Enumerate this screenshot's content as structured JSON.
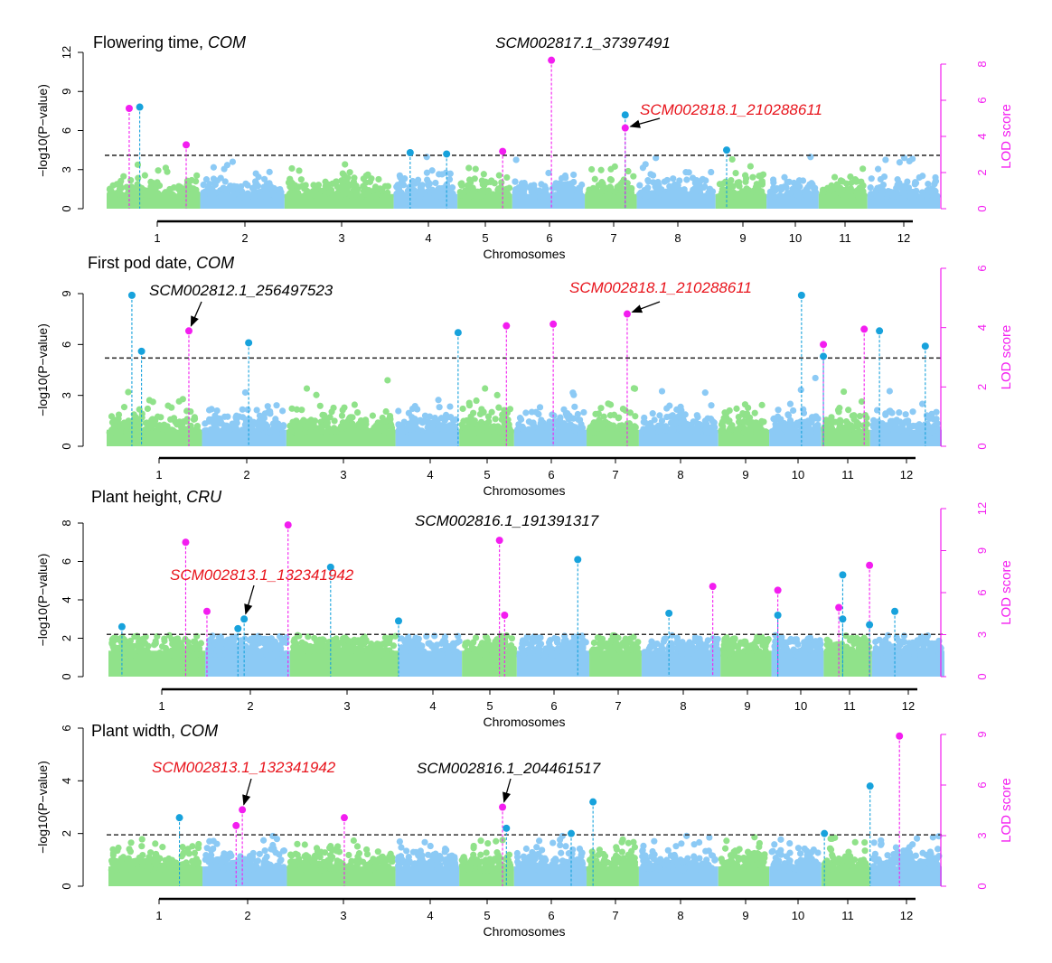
{
  "colors": {
    "green": "#90e28a",
    "blue": "#8ccaf5",
    "peak_blue": "#17a2dc",
    "magenta": "#f31df0",
    "threshold": "#333333",
    "red": "#e8141c"
  },
  "chart_data": [
    {
      "type": "scatter",
      "title": "Flowering time, ",
      "title_italic": "COM",
      "ylabel": "−log10(P−value)",
      "y2label": "LOD score",
      "xlabel": "Chromosomes",
      "ylim": [
        0,
        12
      ],
      "yticks": [
        0,
        3,
        6,
        9,
        12
      ],
      "y2lim": [
        0,
        8
      ],
      "y2ticks": [
        0,
        2,
        4,
        6,
        8
      ],
      "xticks": [
        "1",
        "2",
        "3",
        "4",
        "5",
        "6",
        "7",
        "8",
        "9",
        "10",
        "11",
        "12"
      ],
      "threshold": 4.1,
      "peaks": [
        {
          "pos": 0.68,
          "y": 7.7,
          "type": "magenta"
        },
        {
          "pos": 0.8,
          "y": 7.8,
          "type": "blue"
        },
        {
          "pos": 1.33,
          "y": 4.9,
          "type": "magenta"
        },
        {
          "pos": 3.79,
          "y": 4.3,
          "type": "blue"
        },
        {
          "pos": 4.32,
          "y": 4.2,
          "type": "blue"
        },
        {
          "pos": 5.27,
          "y": 4.4,
          "type": "magenta"
        },
        {
          "pos": 6.03,
          "y": 11.4,
          "type": "magenta"
        },
        {
          "pos": 7.18,
          "y": 7.2,
          "type": "blue"
        },
        {
          "pos": 7.18,
          "y": 6.2,
          "type": "magenta"
        },
        {
          "pos": 8.75,
          "y": 4.5,
          "type": "blue"
        }
      ],
      "annotations": [
        {
          "text": "SCM002817.1_37397491",
          "color": "black"
        },
        {
          "text": "SCM002818.1_210288611",
          "color": "red",
          "arrow_to_peak": 8
        }
      ]
    },
    {
      "type": "scatter",
      "title": "First pod date, ",
      "title_italic": "COM",
      "ylabel": "−log10(P−value)",
      "y2label": "LOD score",
      "xlabel": "Chromosomes",
      "ylim": [
        0,
        9
      ],
      "yticks": [
        0,
        3,
        6,
        9
      ],
      "y2lim": [
        0,
        6
      ],
      "y2ticks": [
        0,
        2,
        4,
        6
      ],
      "xticks": [
        "1",
        "2",
        "3",
        "4",
        "5",
        "6",
        "7",
        "8",
        "9",
        "10",
        "11",
        "12"
      ],
      "threshold": 5.2,
      "peaks": [
        {
          "pos": 0.69,
          "y": 8.9,
          "type": "blue"
        },
        {
          "pos": 0.8,
          "y": 5.6,
          "type": "blue"
        },
        {
          "pos": 1.34,
          "y": 6.8,
          "type": "magenta"
        },
        {
          "pos": 2.02,
          "y": 6.1,
          "type": "blue"
        },
        {
          "pos": 4.49,
          "y": 6.7,
          "type": "blue"
        },
        {
          "pos": 5.3,
          "y": 7.1,
          "type": "magenta"
        },
        {
          "pos": 6.03,
          "y": 7.2,
          "type": "magenta"
        },
        {
          "pos": 7.18,
          "y": 7.8,
          "type": "magenta"
        },
        {
          "pos": 10.07,
          "y": 8.9,
          "type": "blue"
        },
        {
          "pos": 10.51,
          "y": 6.0,
          "type": "magenta"
        },
        {
          "pos": 10.51,
          "y": 5.3,
          "type": "blue"
        },
        {
          "pos": 11.28,
          "y": 6.9,
          "type": "magenta"
        },
        {
          "pos": 11.54,
          "y": 6.8,
          "type": "blue"
        },
        {
          "pos": 12.32,
          "y": 5.9,
          "type": "blue"
        }
      ],
      "annotations": [
        {
          "text": "SCM002812.1_256497523",
          "color": "black",
          "arrow_to_peak": 2
        },
        {
          "text": "SCM002818.1_210288611",
          "color": "red",
          "arrow_to_peak": 7
        }
      ]
    },
    {
      "type": "scatter",
      "title": "Plant height, ",
      "title_italic": "CRU",
      "ylabel": "−log10(P−value)",
      "y2label": "LOD score",
      "xlabel": "Chromosomes",
      "ylim": [
        0,
        8
      ],
      "yticks": [
        0,
        2,
        4,
        6,
        8
      ],
      "y2lim": [
        0,
        12
      ],
      "y2ticks": [
        0,
        3,
        6,
        9,
        12
      ],
      "xticks": [
        "1",
        "2",
        "3",
        "4",
        "5",
        "6",
        "7",
        "8",
        "9",
        "10",
        "11",
        "12"
      ],
      "threshold": 2.2,
      "peaks": [
        {
          "pos": 0.55,
          "y": 2.6,
          "type": "blue"
        },
        {
          "pos": 1.27,
          "y": 7.0,
          "type": "magenta"
        },
        {
          "pos": 1.51,
          "y": 3.4,
          "type": "magenta"
        },
        {
          "pos": 1.86,
          "y": 2.5,
          "type": "blue"
        },
        {
          "pos": 1.93,
          "y": 3.0,
          "type": "blue"
        },
        {
          "pos": 2.39,
          "y": 7.9,
          "type": "magenta"
        },
        {
          "pos": 2.83,
          "y": 5.7,
          "type": "blue"
        },
        {
          "pos": 3.6,
          "y": 2.9,
          "type": "blue"
        },
        {
          "pos": 5.15,
          "y": 7.1,
          "type": "magenta"
        },
        {
          "pos": 5.23,
          "y": 3.2,
          "type": "magenta"
        },
        {
          "pos": 6.37,
          "y": 6.1,
          "type": "blue"
        },
        {
          "pos": 7.78,
          "y": 3.3,
          "type": "blue"
        },
        {
          "pos": 8.46,
          "y": 4.7,
          "type": "magenta"
        },
        {
          "pos": 9.57,
          "y": 4.5,
          "type": "magenta"
        },
        {
          "pos": 9.57,
          "y": 3.2,
          "type": "blue"
        },
        {
          "pos": 10.78,
          "y": 3.6,
          "type": "magenta"
        },
        {
          "pos": 10.86,
          "y": 5.3,
          "type": "blue"
        },
        {
          "pos": 10.86,
          "y": 3.0,
          "type": "blue"
        },
        {
          "pos": 11.34,
          "y": 5.8,
          "type": "magenta"
        },
        {
          "pos": 11.34,
          "y": 2.7,
          "type": "blue"
        },
        {
          "pos": 11.77,
          "y": 3.4,
          "type": "blue"
        }
      ],
      "annotations": [
        {
          "text": "SCM002816.1_191391317",
          "color": "black"
        },
        {
          "text": "SCM002813.1_132341942",
          "color": "red",
          "arrow_to_peak": 4
        }
      ]
    },
    {
      "type": "scatter",
      "title": "Plant width, ",
      "title_italic": "COM",
      "ylabel": "−log10(P−value)",
      "y2label": "LOD score",
      "xlabel": "Chromosomes",
      "ylim": [
        0,
        6
      ],
      "yticks": [
        0,
        2,
        4,
        6
      ],
      "y2lim": [
        0,
        9
      ],
      "y2ticks": [
        0,
        3,
        6,
        9
      ],
      "xticks": [
        "1",
        "2",
        "3",
        "4",
        "5",
        "6",
        "7",
        "8",
        "9",
        "10",
        "11",
        "12"
      ],
      "threshold": 1.95,
      "peaks": [
        {
          "pos": 1.23,
          "y": 2.6,
          "type": "blue"
        },
        {
          "pos": 1.87,
          "y": 2.3,
          "type": "magenta"
        },
        {
          "pos": 1.94,
          "y": 2.9,
          "type": "magenta"
        },
        {
          "pos": 3.01,
          "y": 2.6,
          "type": "magenta"
        },
        {
          "pos": 5.24,
          "y": 3.0,
          "type": "magenta"
        },
        {
          "pos": 5.3,
          "y": 2.2,
          "type": "blue"
        },
        {
          "pos": 6.31,
          "y": 2.0,
          "type": "blue"
        },
        {
          "pos": 6.65,
          "y": 3.2,
          "type": "blue"
        },
        {
          "pos": 10.53,
          "y": 2.0,
          "type": "blue"
        },
        {
          "pos": 11.38,
          "y": 3.8,
          "type": "blue"
        },
        {
          "pos": 11.88,
          "y": 5.7,
          "type": "magenta"
        }
      ],
      "annotations": [
        {
          "text": "SCM002813.1_132341942",
          "color": "red",
          "arrow_to_peak": 2
        },
        {
          "text": "SCM002816.1_204461517",
          "color": "black",
          "arrow_to_peak": 4
        }
      ]
    }
  ]
}
